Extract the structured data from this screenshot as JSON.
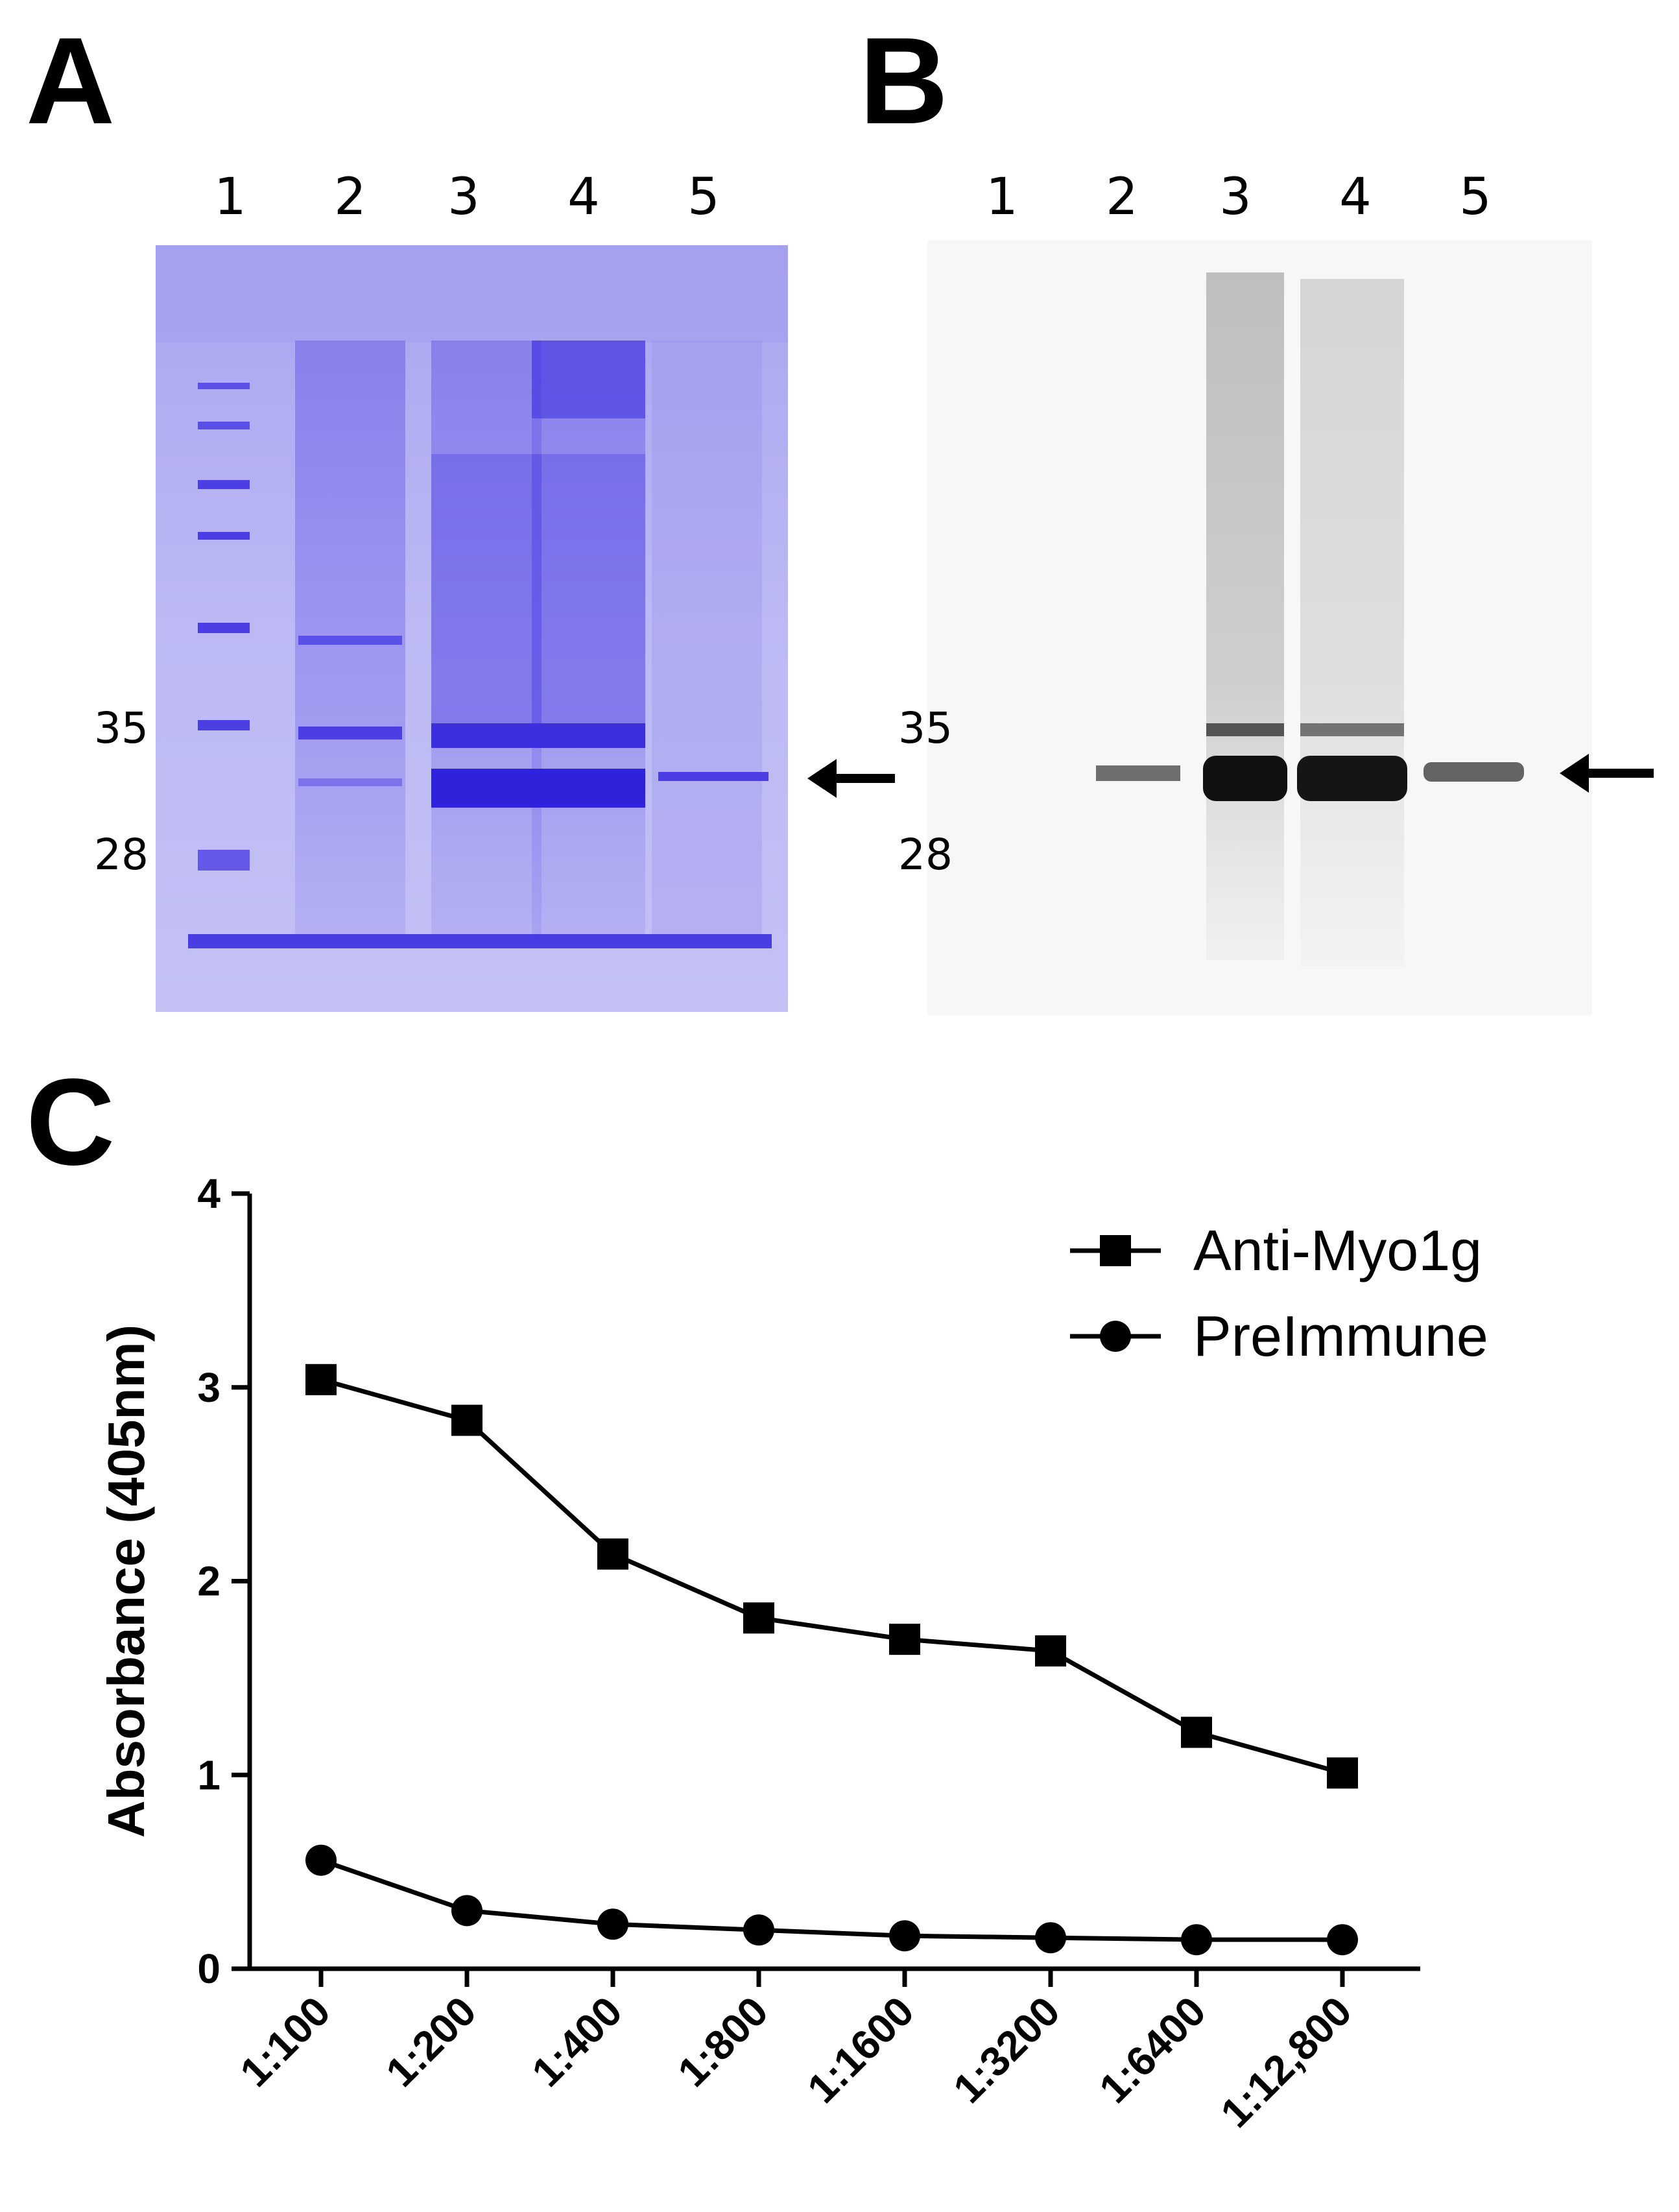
{
  "panels": {
    "a": {
      "letter": "A",
      "lanes": [
        "1",
        "2",
        "3",
        "4",
        "5"
      ],
      "markers": [
        "35",
        "28"
      ]
    },
    "b": {
      "letter": "B",
      "lanes": [
        "1",
        "2",
        "3",
        "4",
        "5"
      ],
      "markers": [
        "35",
        "28"
      ]
    },
    "c": {
      "letter": "C"
    }
  },
  "colors": {
    "coomassie": "#3b2fe0",
    "gel_bg": "#b7b4f2",
    "blot_band": "#111111",
    "line": "#000000"
  },
  "chart_data": {
    "type": "line",
    "title": "",
    "xlabel": "",
    "ylabel": "Absorbance (405nm)",
    "categories": [
      "1:100",
      "1:200",
      "1:400",
      "1:800",
      "1:1600",
      "1:3200",
      "1:6400",
      "1:12,800"
    ],
    "ylim": [
      0,
      4
    ],
    "yticks": [
      "0",
      "1",
      "2",
      "3",
      "4"
    ],
    "grid": false,
    "legend_position": "top-right",
    "series": [
      {
        "name": "Anti-Myo1g",
        "marker": "square",
        "values": [
          3.04,
          2.83,
          2.14,
          1.81,
          1.7,
          1.64,
          1.22,
          1.01
        ]
      },
      {
        "name": "PreImmune",
        "marker": "circle",
        "values": [
          0.56,
          0.3,
          0.23,
          0.2,
          0.17,
          0.16,
          0.15,
          0.15
        ]
      }
    ]
  }
}
